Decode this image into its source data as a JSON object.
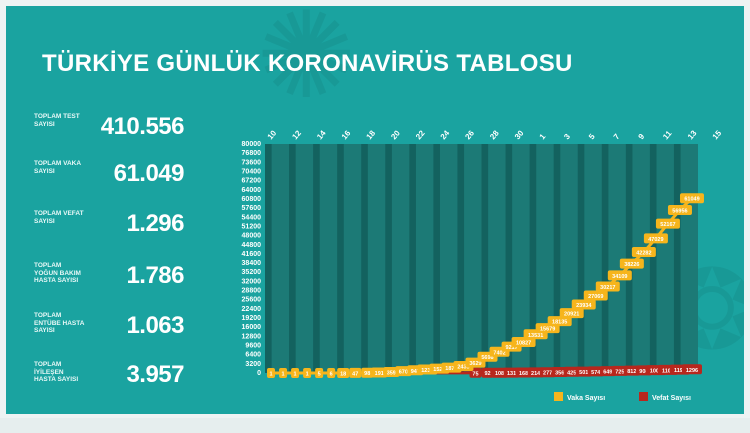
{
  "title": "TÜRKİYE GÜNLÜK KORONAVİRÜS TABLOSU",
  "colors": {
    "background": "#1aa3a0",
    "plot_stripe_dark": "#13625f",
    "plot_stripe_mid": "#1c7a76",
    "cases": "#f6b51c",
    "deaths": "#b8271d",
    "text": "#ffffff"
  },
  "stats": [
    {
      "label": "TOPLAM TEST SAYISI",
      "value": "410.556"
    },
    {
      "label": "TOPLAM VAKA SAYISI",
      "value": "61.049"
    },
    {
      "label": "TOPLAM VEFAT SAYISI",
      "value": "1.296"
    },
    {
      "label": "TOPLAM YOĞUN BAKIM HASTA SAYISI",
      "value": "1.786"
    },
    {
      "label": "TOPLAM ENTÜBE HASTA SAYISI",
      "value": "1.063"
    },
    {
      "label": "TOPLAM İYİLEŞEN HASTA SAYISI",
      "value": "3.957"
    }
  ],
  "chart_data": {
    "type": "line",
    "x_tick_labels": [
      "10",
      "12",
      "14",
      "16",
      "18",
      "20",
      "22",
      "24",
      "26",
      "28",
      "30",
      "1",
      "3",
      "5",
      "7",
      "9",
      "11",
      "13",
      "15"
    ],
    "y_ticks": [
      0,
      3200,
      6400,
      9600,
      12800,
      16000,
      19200,
      22400,
      25600,
      28800,
      32000,
      35200,
      38400,
      41600,
      44800,
      48000,
      51200,
      54400,
      57600,
      60800,
      64000,
      67200,
      70400,
      73600,
      76800,
      80000
    ],
    "ylim": [
      0,
      80000
    ],
    "series": [
      {
        "name": "Vaka Sayısı",
        "color": "#f6b51c",
        "values": [
          1,
          1,
          1,
          1,
          5,
          6,
          18,
          47,
          98,
          191,
          359,
          670,
          947,
          1236,
          1529,
          1872,
          2433,
          3629,
          5698,
          7402,
          9217,
          10827,
          13531,
          15679,
          18135,
          20921,
          23934,
          27069,
          30217,
          34109,
          38226,
          42282,
          47029,
          52167,
          56956,
          61049
        ],
        "labels": [
          "1",
          "1",
          "1",
          "1",
          "5",
          "6",
          "18",
          "47",
          "98",
          "191",
          "359",
          "670",
          "947",
          "1236",
          "1529",
          "1872",
          "2433",
          "3629",
          "5698",
          "7402",
          "9217",
          "10827",
          "13531",
          "15679",
          "18135",
          "20921",
          "23934",
          "27069",
          "30217",
          "34109",
          "38226",
          "42282",
          "47029",
          "52167",
          "56956",
          "61049"
        ]
      },
      {
        "name": "Vefat Sayısı",
        "color": "#b8271d",
        "values": [
          0,
          0,
          0,
          0,
          0,
          0,
          0,
          1,
          1,
          2,
          4,
          9,
          21,
          30,
          37,
          44,
          59,
          75,
          92,
          108,
          131,
          168,
          214,
          277,
          356,
          425,
          501,
          574,
          649,
          725,
          812,
          908,
          1006,
          1101,
          1198,
          1296
        ],
        "labels": [
          "",
          "",
          "",
          "",
          "",
          "",
          "",
          "",
          "",
          "",
          "",
          "",
          "",
          "",
          "",
          "",
          "",
          "75",
          "92",
          "108",
          "131",
          "168",
          "214",
          "277",
          "356",
          "425",
          "501",
          "574",
          "649",
          "725",
          "812",
          "908",
          "1006",
          "1101",
          "1198",
          "1296"
        ]
      }
    ],
    "legend_position": "bottom-right",
    "grid": false
  }
}
